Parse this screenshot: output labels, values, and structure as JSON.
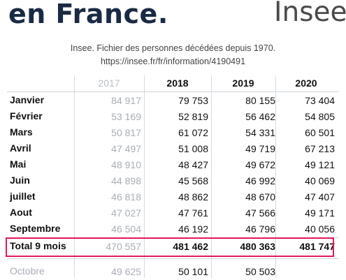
{
  "header": {
    "title": "en France.",
    "brand": "Insee"
  },
  "source": {
    "line1": "Insee. Fichier des personnes décédées depuis 1970.",
    "line2": "https://insee.fr/fr/information/4190491"
  },
  "table": {
    "columns": [
      "2017",
      "2018",
      "2019",
      "2020"
    ],
    "rows": [
      {
        "label": "Janvier",
        "v": [
          "84 917",
          "79 753",
          "80 155",
          "73 404"
        ]
      },
      {
        "label": "Février",
        "v": [
          "53 169",
          "52 819",
          "56 462",
          "54 805"
        ]
      },
      {
        "label": "Mars",
        "v": [
          "50 817",
          "61 072",
          "54 331",
          "60 501"
        ]
      },
      {
        "label": "Avril",
        "v": [
          "47 497",
          "51 008",
          "49 719",
          "67 213"
        ]
      },
      {
        "label": "Mai",
        "v": [
          "48 910",
          "48 427",
          "49 672",
          "49 121"
        ]
      },
      {
        "label": "Juin",
        "v": [
          "44 898",
          "45 568",
          "46 992",
          "40 069"
        ]
      },
      {
        "label": "juillet",
        "v": [
          "46 818",
          "48 862",
          "48 670",
          "47 407"
        ]
      },
      {
        "label": "Aout",
        "v": [
          "47 027",
          "47 761",
          "47 566",
          "49 171"
        ]
      },
      {
        "label": "Septembre",
        "v": [
          "46 504",
          "46 192",
          "46 796",
          "40 056"
        ]
      }
    ],
    "total": {
      "label": "Total 9 mois",
      "v": [
        "470 557",
        "481 462",
        "480 363",
        "481 747"
      ]
    },
    "october": {
      "label": "Octobre",
      "v": [
        "49 625",
        "50 101",
        "50 503",
        ""
      ]
    }
  },
  "colors": {
    "highlight": "#e2185b",
    "title": "#1a2a44",
    "dim": "#a9aeb6"
  }
}
